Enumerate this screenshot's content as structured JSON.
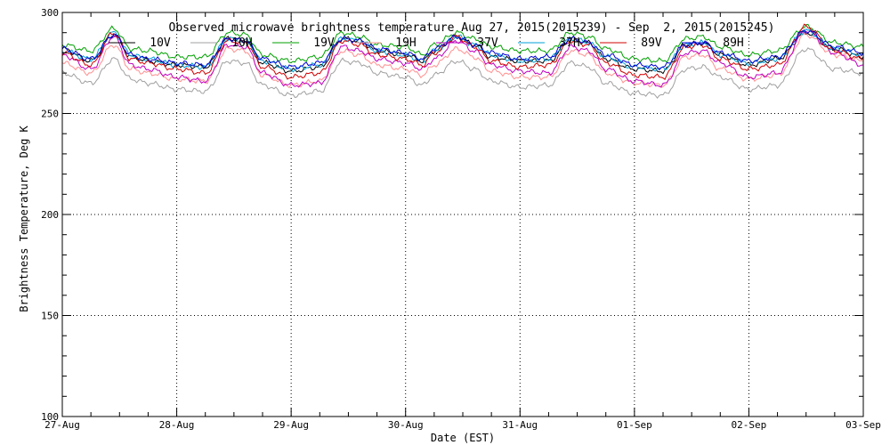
{
  "chart_data": {
    "type": "line",
    "title": "Observed microwave brightness temperature Aug 27, 2015(2015239) - Sep  2, 2015(2015245)",
    "xlabel": "Date (EST)",
    "ylabel": "Brightness Temperature, Deg K",
    "ylim": [
      100,
      300
    ],
    "xlim": [
      0,
      7
    ],
    "y_ticks": [
      100,
      150,
      200,
      250,
      300
    ],
    "x_ticks": [
      0,
      1,
      2,
      3,
      4,
      5,
      6,
      7
    ],
    "x_tick_labels": [
      "27-Aug",
      "28-Aug",
      "29-Aug",
      "30-Aug",
      "31-Aug",
      "01-Sep",
      "02-Sep",
      "03-Sep"
    ],
    "grid": "dotted",
    "legend_placement": "top",
    "x": [
      0,
      0.25,
      0.45,
      0.6,
      0.75,
      1.0,
      1.25,
      1.45,
      1.6,
      1.75,
      2.0,
      2.25,
      2.45,
      2.6,
      2.75,
      3.0,
      3.15,
      3.25,
      3.45,
      3.6,
      3.75,
      4.0,
      4.25,
      4.45,
      4.6,
      4.75,
      5.0,
      5.25,
      5.45,
      5.6,
      5.75,
      6.0,
      6.25,
      6.5,
      6.75,
      7.0
    ],
    "series": [
      {
        "name": "10V",
        "color": "#000000",
        "values": [
          282,
          276,
          289,
          278,
          276,
          274,
          273,
          287,
          286,
          275,
          271,
          273,
          287,
          286,
          281,
          279,
          276,
          281,
          288,
          284,
          278,
          276,
          276,
          287,
          285,
          277,
          272,
          271,
          284,
          285,
          279,
          274,
          277,
          290,
          282,
          278
        ]
      },
      {
        "name": "10H",
        "color": "#a0a0a0",
        "values": [
          270,
          265,
          277,
          267,
          265,
          262,
          261,
          276,
          275,
          264,
          259,
          261,
          276,
          275,
          270,
          268,
          264,
          269,
          276,
          272,
          266,
          263,
          264,
          275,
          273,
          265,
          260,
          259,
          272,
          273,
          268,
          262,
          264,
          282,
          272,
          270
        ]
      },
      {
        "name": "19V",
        "color": "#00a000",
        "values": [
          284,
          281,
          292,
          282,
          281,
          278,
          278,
          290,
          289,
          279,
          276,
          278,
          290,
          288,
          284,
          283,
          279,
          284,
          290,
          287,
          283,
          281,
          281,
          290,
          288,
          282,
          277,
          276,
          287,
          288,
          283,
          279,
          281,
          293,
          285,
          283
        ]
      },
      {
        "name": "19H",
        "color": "#ff9090",
        "values": [
          275,
          270,
          284,
          272,
          270,
          267,
          266,
          282,
          281,
          269,
          264,
          266,
          281,
          279,
          274,
          272,
          269,
          274,
          282,
          278,
          271,
          268,
          268,
          281,
          279,
          270,
          265,
          264,
          278,
          279,
          272,
          267,
          269,
          289,
          279,
          276
        ]
      },
      {
        "name": "37V",
        "color": "#c000c0",
        "values": [
          279,
          272,
          288,
          274,
          272,
          268,
          266,
          284,
          283,
          270,
          264,
          265,
          283,
          281,
          277,
          275,
          272,
          277,
          286,
          281,
          274,
          271,
          270,
          283,
          281,
          272,
          266,
          264,
          280,
          281,
          275,
          268,
          270,
          291,
          280,
          274
        ]
      },
      {
        "name": "37H",
        "color": "#00a0d8",
        "values": [
          281,
          277,
          290,
          279,
          277,
          274,
          273,
          287,
          286,
          276,
          272,
          274,
          287,
          286,
          281,
          279,
          276,
          281,
          288,
          284,
          279,
          276,
          277,
          287,
          285,
          278,
          273,
          272,
          284,
          285,
          279,
          275,
          277,
          291,
          282,
          279
        ]
      },
      {
        "name": "89V",
        "color": "#d00000",
        "values": [
          280,
          274,
          290,
          277,
          275,
          272,
          270,
          286,
          285,
          273,
          268,
          270,
          286,
          284,
          279,
          277,
          274,
          280,
          288,
          283,
          276,
          273,
          274,
          286,
          284,
          275,
          269,
          268,
          283,
          284,
          277,
          272,
          274,
          293,
          281,
          277
        ]
      },
      {
        "name": "89H",
        "color": "#0000d0",
        "values": [
          282,
          277,
          289,
          279,
          277,
          275,
          274,
          287,
          286,
          277,
          273,
          275,
          287,
          286,
          282,
          280,
          277,
          282,
          288,
          284,
          280,
          277,
          278,
          287,
          285,
          279,
          274,
          273,
          284,
          285,
          280,
          276,
          278,
          291,
          283,
          280
        ]
      }
    ]
  }
}
